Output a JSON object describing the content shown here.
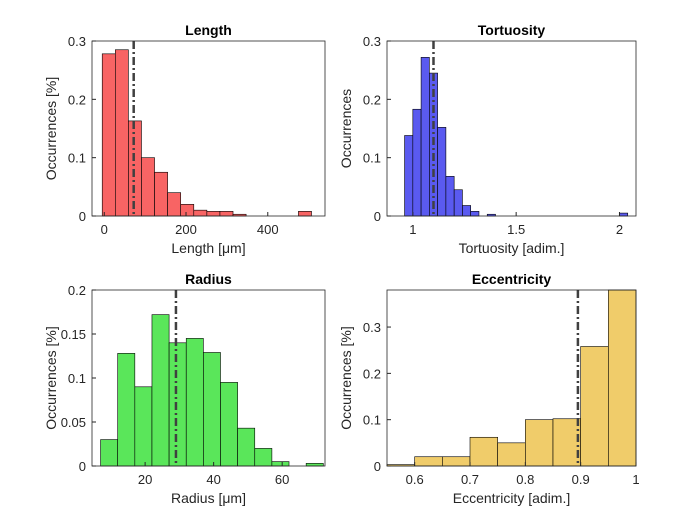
{
  "chart_data": [
    {
      "type": "histogram",
      "title": "Length",
      "xlabel": "Length [μm]",
      "ylabel": "Occurrences [%]",
      "bins": [
        -5,
        27,
        59,
        91,
        123,
        155,
        187,
        219,
        251,
        283,
        315,
        347,
        379,
        411,
        443,
        475,
        507
      ],
      "counts": [
        0.278,
        0.285,
        0.163,
        0.1,
        0.075,
        0.04,
        0.02,
        0.01,
        0.008,
        0.008,
        0.003,
        0,
        0,
        0,
        0,
        0.008
      ],
      "color": "#f86464",
      "vline": 72,
      "xlim": [
        -30,
        540
      ],
      "ylim": [
        0,
        0.3
      ],
      "xticks": [
        0,
        200,
        400
      ],
      "yticks": [
        0,
        0.1,
        0.2,
        0.3
      ]
    },
    {
      "type": "histogram",
      "title": "Tortuosity",
      "xlabel": "Tortuosity [adim.]",
      "ylabel": "Occurrences",
      "bins": [
        0.96,
        1.0,
        1.04,
        1.08,
        1.12,
        1.16,
        1.2,
        1.24,
        1.28,
        1.32,
        1.36,
        1.4,
        1.44,
        1.48,
        1.52,
        1.56,
        1.6,
        1.64,
        1.68,
        1.72,
        1.76,
        1.8,
        1.84,
        1.88,
        1.92,
        1.96,
        2.0,
        2.04
      ],
      "counts": [
        0.138,
        0.183,
        0.272,
        0.245,
        0.152,
        0.068,
        0.045,
        0.018,
        0.008,
        0,
        0.003,
        0,
        0,
        0,
        0,
        0,
        0,
        0,
        0,
        0,
        0,
        0,
        0,
        0,
        0,
        0,
        0.005
      ],
      "color": "#5a5af0",
      "vline": 1.1,
      "xlim": [
        0.875,
        2.08
      ],
      "ylim": [
        0,
        0.3
      ],
      "xticks": [
        1,
        1.5,
        2
      ],
      "yticks": [
        0,
        0.1,
        0.2,
        0.3
      ]
    },
    {
      "type": "histogram",
      "title": "Radius",
      "xlabel": "Radius [μm]",
      "ylabel": "Occurrences [%]",
      "bins": [
        7,
        12,
        17,
        22,
        27,
        32,
        37,
        42,
        47,
        52,
        57,
        62,
        67,
        72
      ],
      "counts": [
        0.03,
        0.128,
        0.09,
        0.172,
        0.14,
        0.145,
        0.129,
        0.095,
        0.043,
        0.02,
        0.005,
        0,
        0.003
      ],
      "color": "#5ae65a",
      "vline": 29,
      "xlim": [
        4.5,
        72.5
      ],
      "ylim": [
        0,
        0.2
      ],
      "xticks": [
        20,
        40,
        60
      ],
      "yticks": [
        0,
        0.05,
        0.1,
        0.15,
        0.2
      ]
    },
    {
      "type": "histogram",
      "title": "Eccentricity",
      "xlabel": "Eccentricity [adim.]",
      "ylabel": "Occurrences [%]",
      "bins": [
        0.55,
        0.6,
        0.65,
        0.7,
        0.75,
        0.8,
        0.85,
        0.9,
        0.95,
        1
      ],
      "counts": [
        0.003,
        0.02,
        0.02,
        0.062,
        0.05,
        0.1,
        0.102,
        0.258,
        0.38
      ],
      "color": "#f0cc6a",
      "vline": 0.895,
      "xlim": [
        0.55,
        1
      ],
      "ylim": [
        0,
        0.38
      ],
      "xticks": [
        0.6,
        0.7,
        0.8,
        0.9,
        1
      ],
      "yticks": [
        0,
        0.1,
        0.2,
        0.3
      ]
    }
  ]
}
